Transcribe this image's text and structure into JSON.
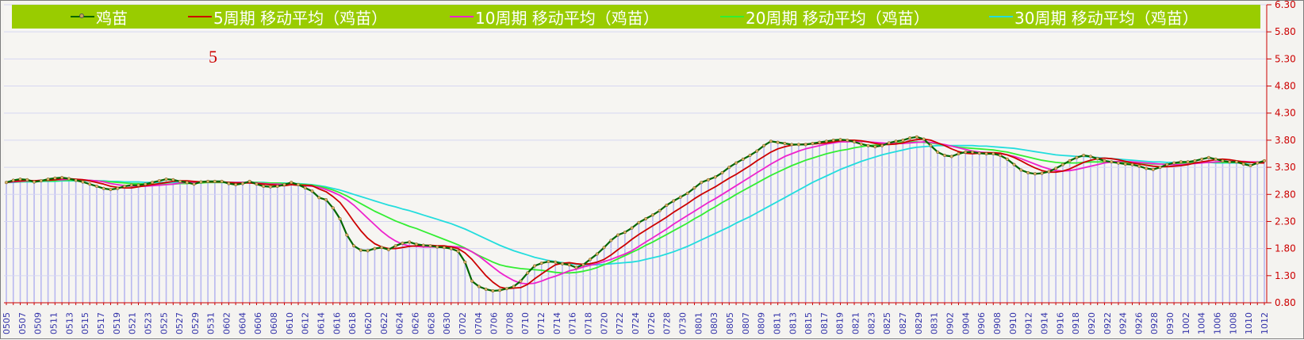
{
  "chart_data": {
    "type": "line",
    "title": "",
    "xlabel": "",
    "ylabel": "",
    "annotation": "5",
    "ylim": [
      0.8,
      6.3
    ],
    "yticks": [
      "0.80",
      "1.30",
      "1.80",
      "2.30",
      "2.80",
      "3.30",
      "3.80",
      "4.30",
      "4.80",
      "5.30",
      "5.80",
      "6.30"
    ],
    "x_tick_labels": [
      "0505",
      "0507",
      "0509",
      "0511",
      "0513",
      "0515",
      "0517",
      "0519",
      "0521",
      "0523",
      "0525",
      "0527",
      "0529",
      "0531",
      "0602",
      "0604",
      "0606",
      "0608",
      "0610",
      "0612",
      "0614",
      "0616",
      "0618",
      "0620",
      "0622",
      "0624",
      "0626",
      "0628",
      "0630",
      "0702",
      "0704",
      "0706",
      "0708",
      "0710",
      "0712",
      "0714",
      "0716",
      "0718",
      "0720",
      "0722",
      "0724",
      "0726",
      "0728",
      "0730",
      "0801",
      "0803",
      "0805",
      "0807",
      "0809",
      "0811",
      "0813",
      "0815",
      "0817",
      "0819",
      "0821",
      "0823",
      "0825",
      "0827",
      "0829",
      "0831",
      "0902",
      "0904",
      "0906",
      "0908",
      "0910",
      "0912",
      "0914",
      "0916",
      "0918",
      "0920",
      "0922",
      "0924",
      "0926",
      "0928",
      "0930",
      "1002",
      "1004",
      "1006",
      "1008",
      "1010",
      "1012"
    ],
    "legend": [
      {
        "name": "鸡苗",
        "color": "#006600",
        "marker": true
      },
      {
        "name": "5周期 移动平均（鸡苗）",
        "color": "#cc0000"
      },
      {
        "name": "10周期 移动平均（鸡苗）",
        "color": "#ee22cc"
      },
      {
        "name": "20周期 移动平均（鸡苗）",
        "color": "#33ee33"
      },
      {
        "name": "30周期 移动平均（鸡苗）",
        "color": "#22dddd"
      }
    ],
    "bar_color": "#b8b8f0",
    "series": [
      {
        "name": "鸡苗",
        "color": "#006600",
        "values": [
          3.02,
          3.06,
          3.08,
          3.07,
          3.03,
          3.05,
          3.08,
          3.1,
          3.11,
          3.09,
          3.06,
          3.03,
          2.99,
          2.95,
          2.91,
          2.89,
          2.91,
          2.95,
          2.97,
          2.97,
          2.99,
          3.02,
          3.05,
          3.08,
          3.07,
          3.04,
          3.02,
          2.99,
          3.03,
          3.04,
          3.04,
          3.04,
          3.0,
          2.98,
          3.0,
          3.04,
          2.99,
          2.95,
          2.94,
          2.95,
          2.98,
          3.02,
          2.98,
          2.92,
          2.86,
          2.74,
          2.7,
          2.55,
          2.35,
          2.05,
          1.85,
          1.77,
          1.76,
          1.8,
          1.82,
          1.78,
          1.85,
          1.9,
          1.92,
          1.88,
          1.86,
          1.85,
          1.83,
          1.82,
          1.8,
          1.75,
          1.55,
          1.2,
          1.1,
          1.05,
          1.02,
          1.03,
          1.06,
          1.1,
          1.2,
          1.35,
          1.48,
          1.53,
          1.56,
          1.55,
          1.52,
          1.5,
          1.45,
          1.5,
          1.6,
          1.7,
          1.82,
          1.95,
          2.05,
          2.1,
          2.18,
          2.28,
          2.35,
          2.42,
          2.5,
          2.6,
          2.68,
          2.75,
          2.82,
          2.92,
          3.02,
          3.07,
          3.12,
          3.2,
          3.3,
          3.38,
          3.45,
          3.52,
          3.6,
          3.7,
          3.78,
          3.76,
          3.74,
          3.72,
          3.72,
          3.72,
          3.74,
          3.76,
          3.78,
          3.8,
          3.81,
          3.8,
          3.77,
          3.73,
          3.7,
          3.68,
          3.7,
          3.75,
          3.78,
          3.8,
          3.84,
          3.86,
          3.82,
          3.7,
          3.58,
          3.52,
          3.5,
          3.55,
          3.58,
          3.58,
          3.56,
          3.55,
          3.55,
          3.52,
          3.45,
          3.35,
          3.25,
          3.2,
          3.18,
          3.19,
          3.22,
          3.28,
          3.35,
          3.42,
          3.48,
          3.52,
          3.5,
          3.46,
          3.42,
          3.4,
          3.38,
          3.36,
          3.35,
          3.32,
          3.28,
          3.26,
          3.3,
          3.35,
          3.38,
          3.4,
          3.4,
          3.42,
          3.45,
          3.48,
          3.45,
          3.42,
          3.4,
          3.4,
          3.36,
          3.33,
          3.38,
          3.42
        ]
      },
      {
        "name": "5周期 移动平均（鸡苗）",
        "color": "#cc0000",
        "values": [
          3.02,
          3.04,
          3.05,
          3.06,
          3.05,
          3.06,
          3.06,
          3.07,
          3.09,
          3.09,
          3.08,
          3.07,
          3.05,
          3.02,
          2.99,
          2.95,
          2.93,
          2.92,
          2.92,
          2.94,
          2.96,
          2.98,
          3.0,
          3.02,
          3.04,
          3.05,
          3.05,
          3.04,
          3.03,
          3.03,
          3.03,
          3.03,
          3.02,
          3.01,
          3.01,
          3.01,
          3.0,
          2.99,
          2.98,
          2.97,
          2.96,
          2.98,
          2.97,
          2.97,
          2.96,
          2.9,
          2.85,
          2.76,
          2.65,
          2.48,
          2.3,
          2.13,
          1.99,
          1.89,
          1.83,
          1.8,
          1.8,
          1.82,
          1.84,
          1.85,
          1.86,
          1.86,
          1.85,
          1.85,
          1.83,
          1.8,
          1.72,
          1.6,
          1.45,
          1.3,
          1.18,
          1.09,
          1.06,
          1.07,
          1.08,
          1.14,
          1.24,
          1.33,
          1.42,
          1.5,
          1.53,
          1.54,
          1.52,
          1.51,
          1.52,
          1.55,
          1.6,
          1.68,
          1.78,
          1.87,
          1.97,
          2.06,
          2.14,
          2.22,
          2.3,
          2.38,
          2.47,
          2.55,
          2.63,
          2.72,
          2.8,
          2.87,
          2.94,
          3.02,
          3.1,
          3.17,
          3.25,
          3.33,
          3.42,
          3.5,
          3.58,
          3.64,
          3.68,
          3.71,
          3.72,
          3.73,
          3.73,
          3.74,
          3.75,
          3.77,
          3.79,
          3.8,
          3.8,
          3.79,
          3.77,
          3.74,
          3.72,
          3.72,
          3.73,
          3.75,
          3.79,
          3.81,
          3.82,
          3.8,
          3.75,
          3.7,
          3.64,
          3.59,
          3.56,
          3.55,
          3.56,
          3.57,
          3.57,
          3.56,
          3.53,
          3.48,
          3.42,
          3.35,
          3.29,
          3.24,
          3.21,
          3.21,
          3.23,
          3.27,
          3.33,
          3.39,
          3.43,
          3.46,
          3.47,
          3.46,
          3.44,
          3.41,
          3.38,
          3.36,
          3.34,
          3.32,
          3.31,
          3.31,
          3.32,
          3.33,
          3.35,
          3.38,
          3.4,
          3.42,
          3.44,
          3.45,
          3.44,
          3.42,
          3.4,
          3.39,
          3.38,
          3.38
        ]
      },
      {
        "name": "10周期 移动平均（鸡苗）",
        "color": "#ee22cc",
        "values": [
          3.02,
          3.03,
          3.04,
          3.05,
          3.05,
          3.06,
          3.06,
          3.07,
          3.07,
          3.08,
          3.08,
          3.07,
          3.06,
          3.05,
          3.03,
          3.0,
          2.98,
          2.96,
          2.95,
          2.95,
          2.95,
          2.96,
          2.97,
          2.98,
          2.99,
          3.01,
          3.02,
          3.02,
          3.03,
          3.03,
          3.03,
          3.03,
          3.02,
          3.02,
          3.02,
          3.02,
          3.01,
          3.0,
          2.99,
          2.99,
          2.98,
          2.98,
          2.97,
          2.96,
          2.95,
          2.93,
          2.89,
          2.84,
          2.78,
          2.7,
          2.6,
          2.48,
          2.36,
          2.24,
          2.12,
          2.02,
          1.94,
          1.88,
          1.85,
          1.84,
          1.83,
          1.83,
          1.83,
          1.84,
          1.84,
          1.83,
          1.8,
          1.74,
          1.66,
          1.56,
          1.46,
          1.36,
          1.28,
          1.21,
          1.16,
          1.15,
          1.16,
          1.2,
          1.25,
          1.29,
          1.34,
          1.39,
          1.42,
          1.46,
          1.49,
          1.52,
          1.56,
          1.6,
          1.65,
          1.7,
          1.76,
          1.84,
          1.92,
          2.0,
          2.08,
          2.16,
          2.25,
          2.33,
          2.41,
          2.49,
          2.57,
          2.65,
          2.72,
          2.8,
          2.88,
          2.96,
          3.04,
          3.12,
          3.2,
          3.28,
          3.36,
          3.43,
          3.5,
          3.55,
          3.6,
          3.64,
          3.67,
          3.7,
          3.73,
          3.75,
          3.77,
          3.77,
          3.78,
          3.78,
          3.77,
          3.76,
          3.75,
          3.74,
          3.74,
          3.74,
          3.75,
          3.76,
          3.77,
          3.76,
          3.74,
          3.72,
          3.69,
          3.66,
          3.63,
          3.6,
          3.58,
          3.57,
          3.56,
          3.55,
          3.53,
          3.5,
          3.46,
          3.41,
          3.36,
          3.31,
          3.27,
          3.24,
          3.23,
          3.24,
          3.26,
          3.29,
          3.32,
          3.35,
          3.38,
          3.4,
          3.41,
          3.41,
          3.4,
          3.39,
          3.38,
          3.37,
          3.36,
          3.35,
          3.35,
          3.35,
          3.36,
          3.37,
          3.38,
          3.39,
          3.4,
          3.41,
          3.41,
          3.41,
          3.41,
          3.4,
          3.4,
          3.39
        ]
      },
      {
        "name": "20周期 移动平均（鸡苗）",
        "color": "#33ee33",
        "values": [
          3.02,
          3.03,
          3.03,
          3.04,
          3.04,
          3.05,
          3.05,
          3.05,
          3.06,
          3.06,
          3.06,
          3.06,
          3.06,
          3.05,
          3.04,
          3.03,
          3.02,
          3.01,
          3.0,
          3.0,
          2.99,
          2.99,
          2.99,
          2.99,
          2.99,
          3.0,
          3.0,
          3.01,
          3.01,
          3.02,
          3.02,
          3.02,
          3.02,
          3.02,
          3.02,
          3.02,
          3.02,
          3.01,
          3.01,
          3.01,
          3.0,
          3.0,
          2.99,
          2.98,
          2.97,
          2.95,
          2.92,
          2.88,
          2.83,
          2.77,
          2.7,
          2.63,
          2.56,
          2.49,
          2.43,
          2.37,
          2.31,
          2.26,
          2.21,
          2.17,
          2.12,
          2.07,
          2.02,
          1.97,
          1.92,
          1.87,
          1.81,
          1.74,
          1.67,
          1.61,
          1.55,
          1.5,
          1.47,
          1.45,
          1.43,
          1.42,
          1.41,
          1.4,
          1.38,
          1.36,
          1.35,
          1.35,
          1.36,
          1.38,
          1.41,
          1.45,
          1.5,
          1.55,
          1.61,
          1.67,
          1.73,
          1.79,
          1.86,
          1.92,
          1.99,
          2.06,
          2.13,
          2.2,
          2.27,
          2.35,
          2.42,
          2.5,
          2.57,
          2.65,
          2.72,
          2.8,
          2.87,
          2.94,
          3.01,
          3.08,
          3.15,
          3.21,
          3.27,
          3.33,
          3.38,
          3.43,
          3.47,
          3.51,
          3.55,
          3.58,
          3.61,
          3.63,
          3.66,
          3.68,
          3.7,
          3.71,
          3.73,
          3.74,
          3.75,
          3.76,
          3.77,
          3.77,
          3.76,
          3.75,
          3.73,
          3.71,
          3.69,
          3.67,
          3.66,
          3.65,
          3.64,
          3.63,
          3.62,
          3.6,
          3.58,
          3.55,
          3.52,
          3.49,
          3.46,
          3.43,
          3.41,
          3.39,
          3.38,
          3.38,
          3.38,
          3.39,
          3.4,
          3.4,
          3.4,
          3.4,
          3.4,
          3.39,
          3.38,
          3.37,
          3.37,
          3.36,
          3.36,
          3.36,
          3.37,
          3.37,
          3.38,
          3.38,
          3.39,
          3.39,
          3.39,
          3.39,
          3.39,
          3.39,
          3.39,
          3.39
        ]
      },
      {
        "name": "30周期 移动平均（鸡苗）",
        "color": "#22dddd",
        "values": [
          3.02,
          3.02,
          3.03,
          3.03,
          3.03,
          3.04,
          3.04,
          3.04,
          3.05,
          3.05,
          3.05,
          3.05,
          3.05,
          3.05,
          3.05,
          3.04,
          3.04,
          3.03,
          3.03,
          3.03,
          3.02,
          3.02,
          3.02,
          3.02,
          3.02,
          3.02,
          3.02,
          3.02,
          3.02,
          3.02,
          3.02,
          3.02,
          3.02,
          3.02,
          3.02,
          3.02,
          3.02,
          3.02,
          3.01,
          3.01,
          3.01,
          3.0,
          3.0,
          2.99,
          2.98,
          2.96,
          2.94,
          2.91,
          2.88,
          2.84,
          2.8,
          2.76,
          2.72,
          2.68,
          2.64,
          2.6,
          2.57,
          2.53,
          2.5,
          2.46,
          2.42,
          2.38,
          2.34,
          2.3,
          2.26,
          2.21,
          2.16,
          2.1,
          2.04,
          1.98,
          1.92,
          1.86,
          1.81,
          1.76,
          1.72,
          1.68,
          1.64,
          1.61,
          1.58,
          1.56,
          1.54,
          1.52,
          1.51,
          1.5,
          1.5,
          1.5,
          1.51,
          1.52,
          1.53,
          1.54,
          1.55,
          1.57,
          1.6,
          1.63,
          1.66,
          1.7,
          1.74,
          1.79,
          1.84,
          1.9,
          1.96,
          2.02,
          2.08,
          2.14,
          2.2,
          2.27,
          2.33,
          2.39,
          2.46,
          2.53,
          2.6,
          2.67,
          2.74,
          2.81,
          2.88,
          2.95,
          3.02,
          3.08,
          3.14,
          3.2,
          3.26,
          3.31,
          3.36,
          3.41,
          3.45,
          3.49,
          3.53,
          3.56,
          3.59,
          3.62,
          3.65,
          3.67,
          3.68,
          3.69,
          3.7,
          3.7,
          3.7,
          3.7,
          3.7,
          3.7,
          3.69,
          3.69,
          3.68,
          3.67,
          3.66,
          3.65,
          3.63,
          3.61,
          3.59,
          3.57,
          3.55,
          3.53,
          3.52,
          3.51,
          3.5,
          3.5,
          3.49,
          3.48,
          3.47,
          3.46,
          3.45,
          3.44,
          3.43,
          3.42,
          3.41,
          3.4,
          3.4,
          3.39,
          3.39,
          3.39,
          3.39,
          3.39,
          3.39,
          3.39,
          3.38,
          3.38,
          3.38,
          3.38,
          3.38,
          3.38
        ]
      }
    ]
  }
}
